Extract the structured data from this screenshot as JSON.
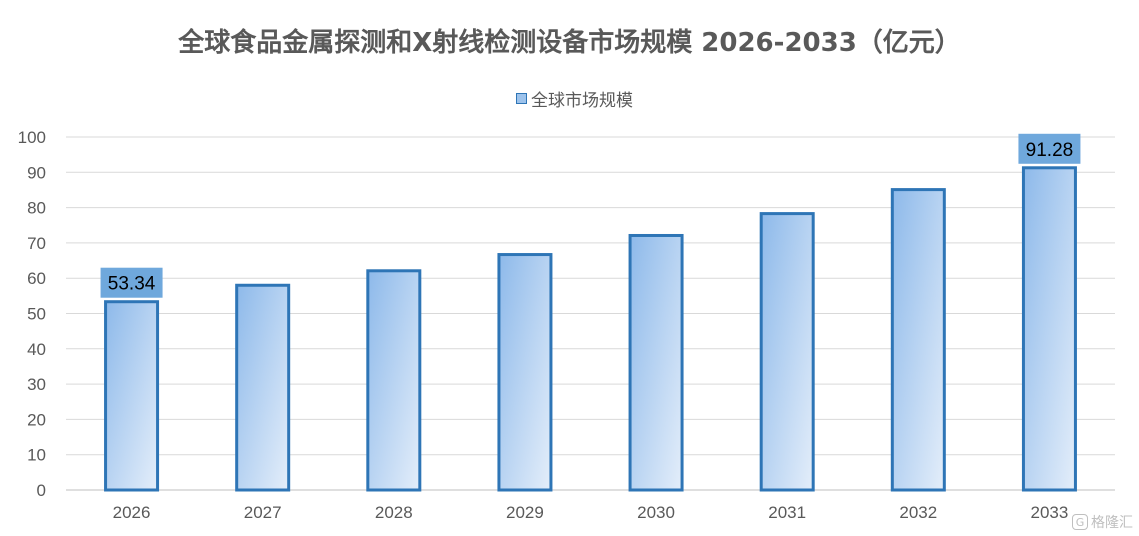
{
  "chart_data": {
    "type": "bar",
    "title": "全球食品金属探测和X射线检测设备市场规模 2026-2033（亿元）",
    "categories": [
      "2026",
      "2027",
      "2028",
      "2029",
      "2030",
      "2031",
      "2032",
      "2033"
    ],
    "series": [
      {
        "name": "全球市场规模",
        "values": [
          53.34,
          58.0,
          62.1,
          66.7,
          72.1,
          78.3,
          85.1,
          91.28
        ]
      }
    ],
    "data_labels": {
      "0": "53.34",
      "7": "91.28"
    },
    "ylim": [
      0,
      100
    ],
    "yticks": [
      0,
      10,
      20,
      30,
      40,
      50,
      60,
      70,
      80,
      90,
      100
    ],
    "grid": true,
    "legend_position": "top",
    "colors": {
      "bar_fill_start": "#8db9ea",
      "bar_fill_end": "#deebf9",
      "bar_border": "#2e75b6",
      "label_box": "#6fa8dc",
      "grid": "#d9d9d9"
    }
  },
  "watermark": {
    "text": "格隆汇"
  }
}
